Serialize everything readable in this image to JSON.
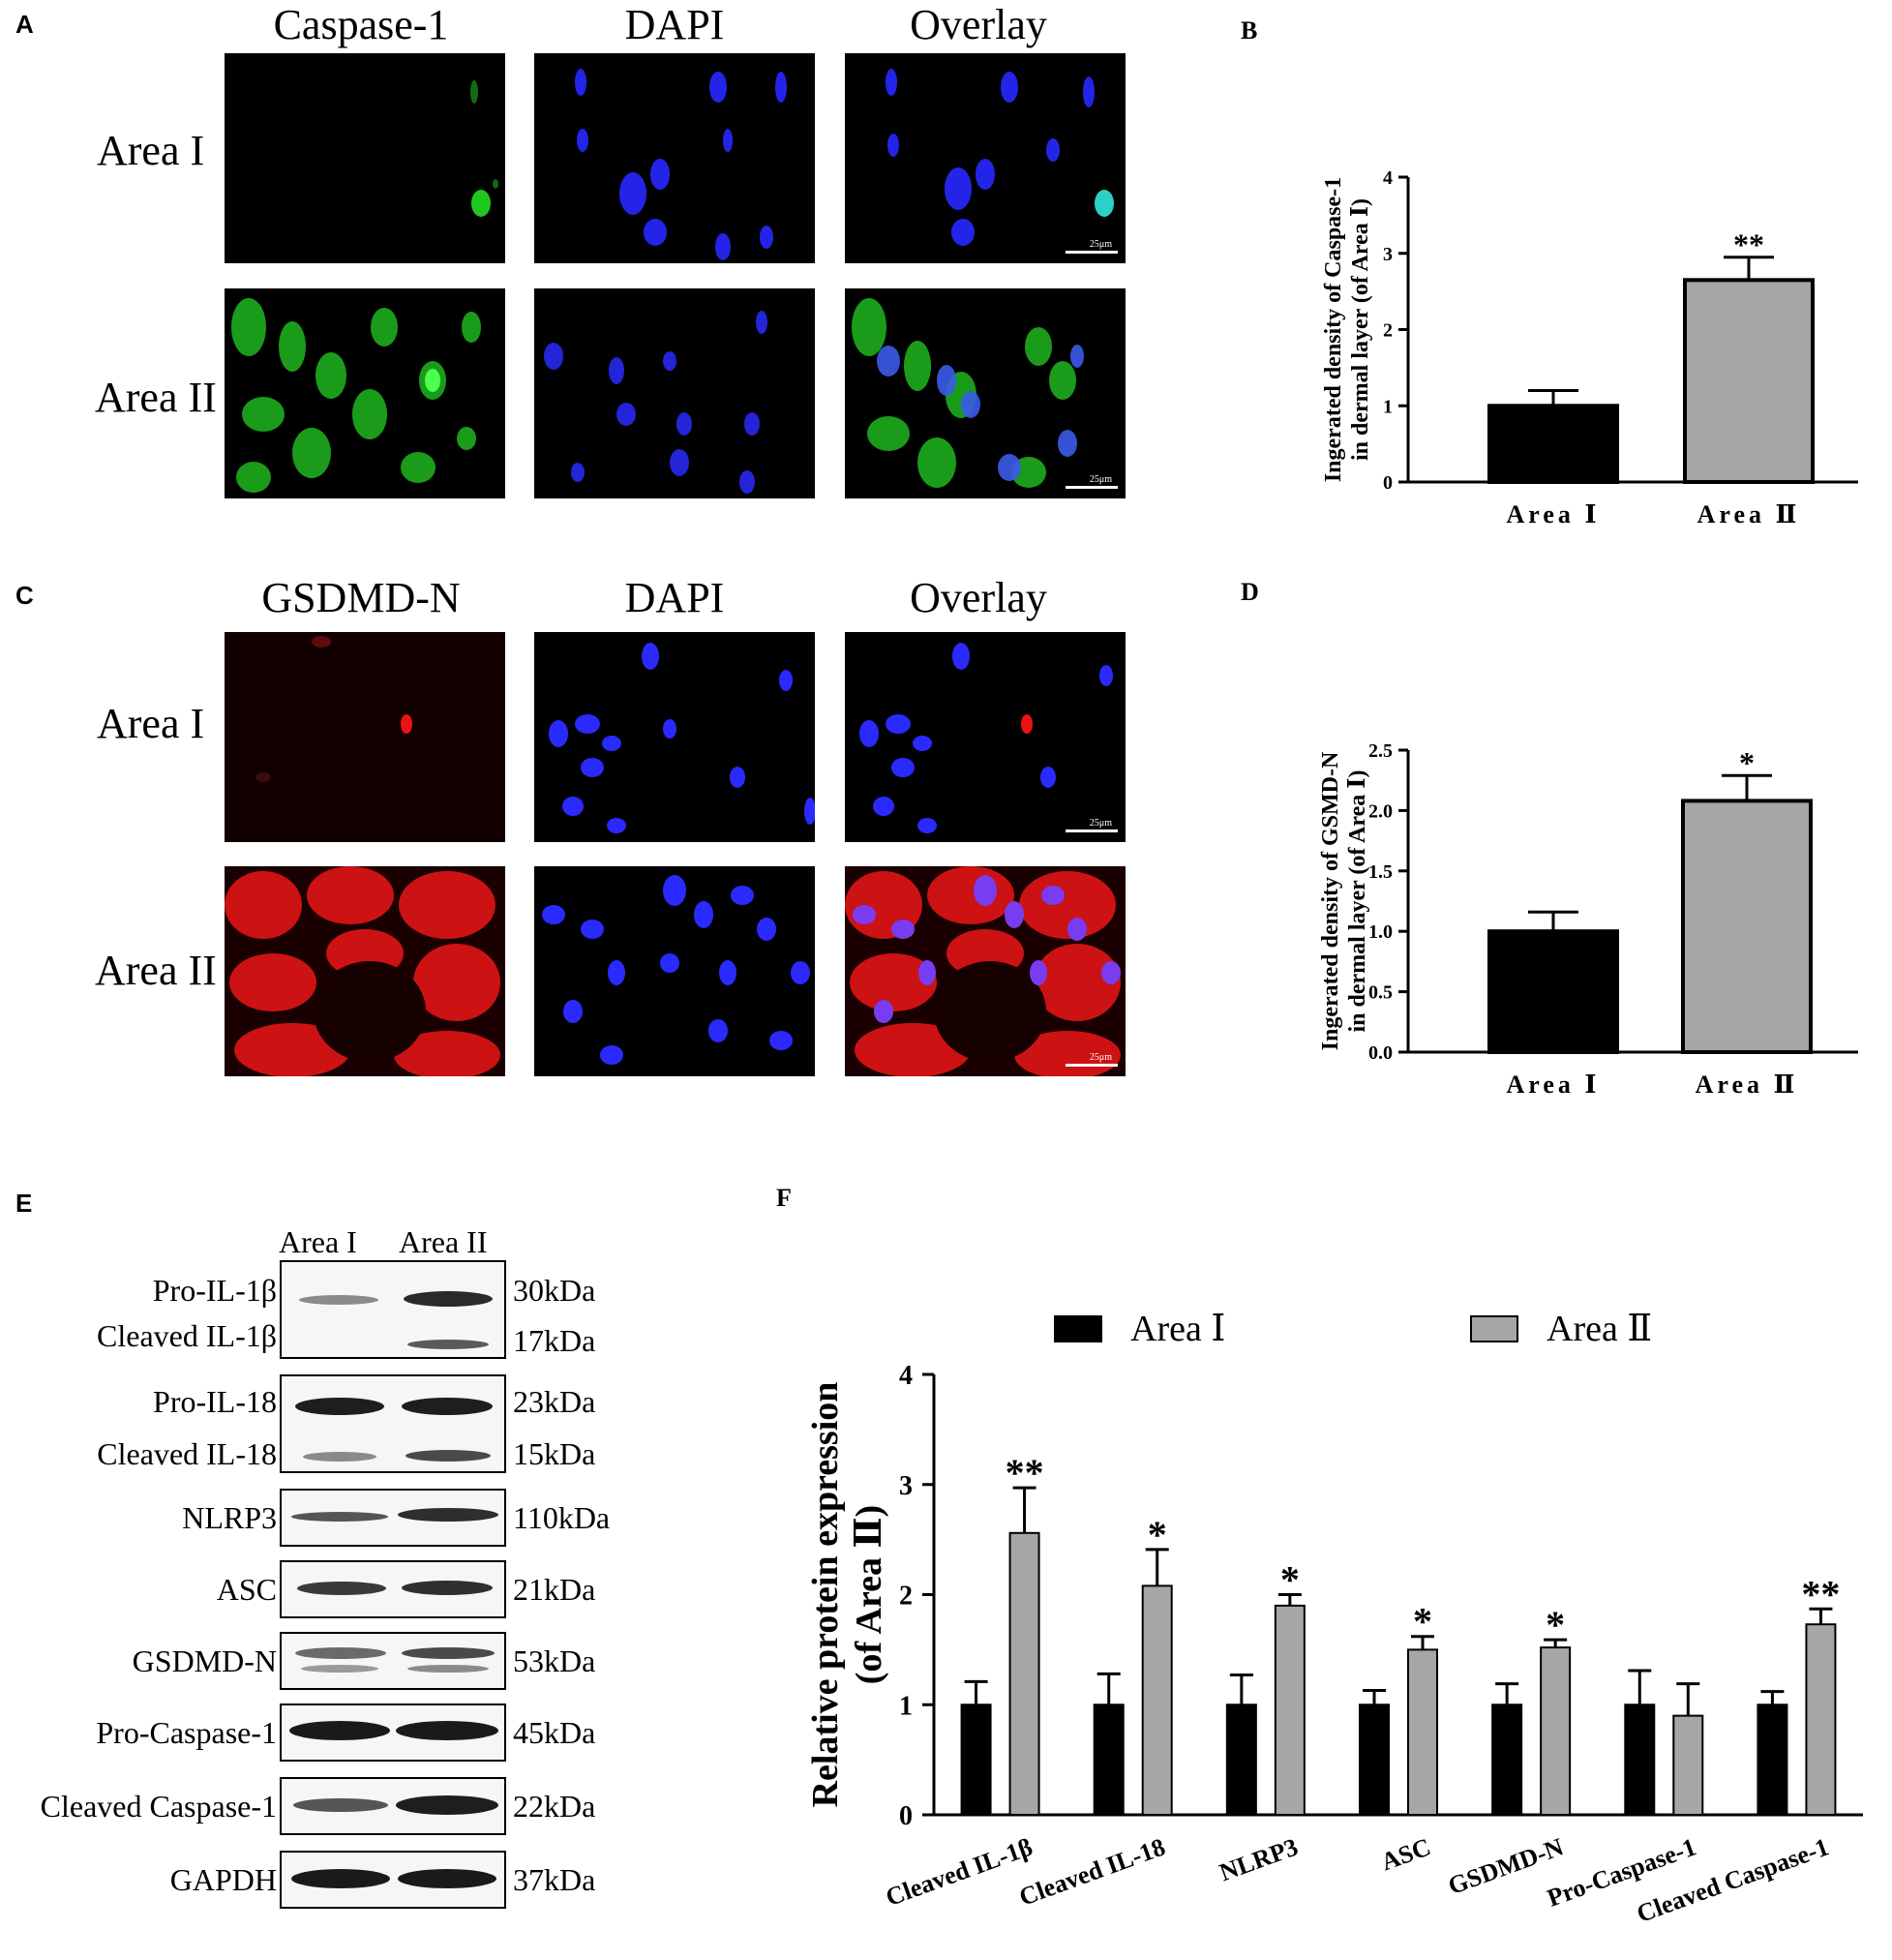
{
  "panels": {
    "A": {
      "letter": "A",
      "columns": [
        "Caspase-1",
        "DAPI",
        "Overlay"
      ],
      "rows": [
        "Area I",
        "Area II"
      ],
      "scale_label": "25μm"
    },
    "C": {
      "letter": "C",
      "columns": [
        "GSDMD-N",
        "DAPI",
        "Overlay"
      ],
      "rows": [
        "Area I",
        "Area II"
      ],
      "scale_label": "25μm"
    },
    "E": {
      "letter": "E",
      "lanes": [
        "Area I",
        "Area II"
      ],
      "blots": [
        {
          "labels": [
            "Pro-IL-1β",
            "Cleaved IL-1β"
          ],
          "kda": [
            "30kDa",
            "17kDa"
          ]
        },
        {
          "labels": [
            "Pro-IL-18",
            "Cleaved IL-18"
          ],
          "kda": [
            "23kDa",
            "15kDa"
          ]
        },
        {
          "labels": [
            "NLRP3"
          ],
          "kda": [
            "110kDa"
          ]
        },
        {
          "labels": [
            "ASC"
          ],
          "kda": [
            "21kDa"
          ]
        },
        {
          "labels": [
            "GSDMD-N"
          ],
          "kda": [
            "53kDa"
          ]
        },
        {
          "labels": [
            "Pro-Caspase-1"
          ],
          "kda": [
            "45kDa"
          ]
        },
        {
          "labels": [
            "Cleaved Caspase-1"
          ],
          "kda": [
            "22kDa"
          ]
        },
        {
          "labels": [
            "GAPDH"
          ],
          "kda": [
            "37kDa"
          ]
        }
      ]
    }
  },
  "colors": {
    "area1_bar": "#000000",
    "area2_bar": "#a6a6a6",
    "caspase_stain": "#22dd22",
    "dapi_stain": "#2222ff",
    "gsdmd_stain": "#ee1111"
  },
  "chart_data": [
    {
      "panel": "B",
      "type": "bar",
      "categories": [
        "Area Ⅰ",
        "Area Ⅱ"
      ],
      "values": [
        1.0,
        2.65
      ],
      "errors": [
        0.2,
        0.3
      ],
      "significance": [
        "",
        "**"
      ],
      "ylabel": [
        "Ingerated density of Caspase-1",
        "in dermal layer (of Area Ⅰ)"
      ],
      "ylim": [
        0,
        4
      ],
      "yticks": [
        "0",
        "1",
        "2",
        "3",
        "4"
      ]
    },
    {
      "panel": "D",
      "type": "bar",
      "categories": [
        "Area Ⅰ",
        "Area Ⅱ"
      ],
      "values": [
        1.0,
        2.08
      ],
      "errors": [
        0.16,
        0.21
      ],
      "significance": [
        "",
        "*"
      ],
      "ylabel": [
        "Ingerated density of GSMD-N",
        "in dermal layer (of Area Ⅰ)"
      ],
      "ylim": [
        0,
        2.5
      ],
      "yticks": [
        "0.0",
        "0.5",
        "1.0",
        "1.5",
        "2.0",
        "2.5"
      ]
    },
    {
      "panel": "F",
      "type": "bar",
      "categories": [
        "Cleaved IL-1β",
        "Cleaved IL-18",
        "NLRP3",
        "ASC",
        "GSDMD-N",
        "Pro-Caspase-1",
        "Cleaved Caspase-1"
      ],
      "series": [
        {
          "name": "Area Ⅰ",
          "values": [
            1.0,
            1.0,
            1.0,
            1.0,
            1.0,
            1.0,
            1.0
          ],
          "errors": [
            0.21,
            0.28,
            0.27,
            0.13,
            0.19,
            0.31,
            0.12
          ]
        },
        {
          "name": "Area Ⅱ",
          "values": [
            2.56,
            2.08,
            1.9,
            1.5,
            1.52,
            0.9,
            1.73
          ],
          "errors": [
            0.41,
            0.33,
            0.1,
            0.12,
            0.07,
            0.29,
            0.14
          ]
        }
      ],
      "significance": [
        "**",
        "*",
        "*",
        "*",
        "*",
        "",
        "**"
      ],
      "ylabel": [
        "Relative protein expression",
        "(of Area Ⅱ)"
      ],
      "ylim": [
        0,
        4
      ],
      "yticks": [
        "0",
        "1",
        "2",
        "3",
        "4"
      ],
      "legend": "top"
    }
  ]
}
